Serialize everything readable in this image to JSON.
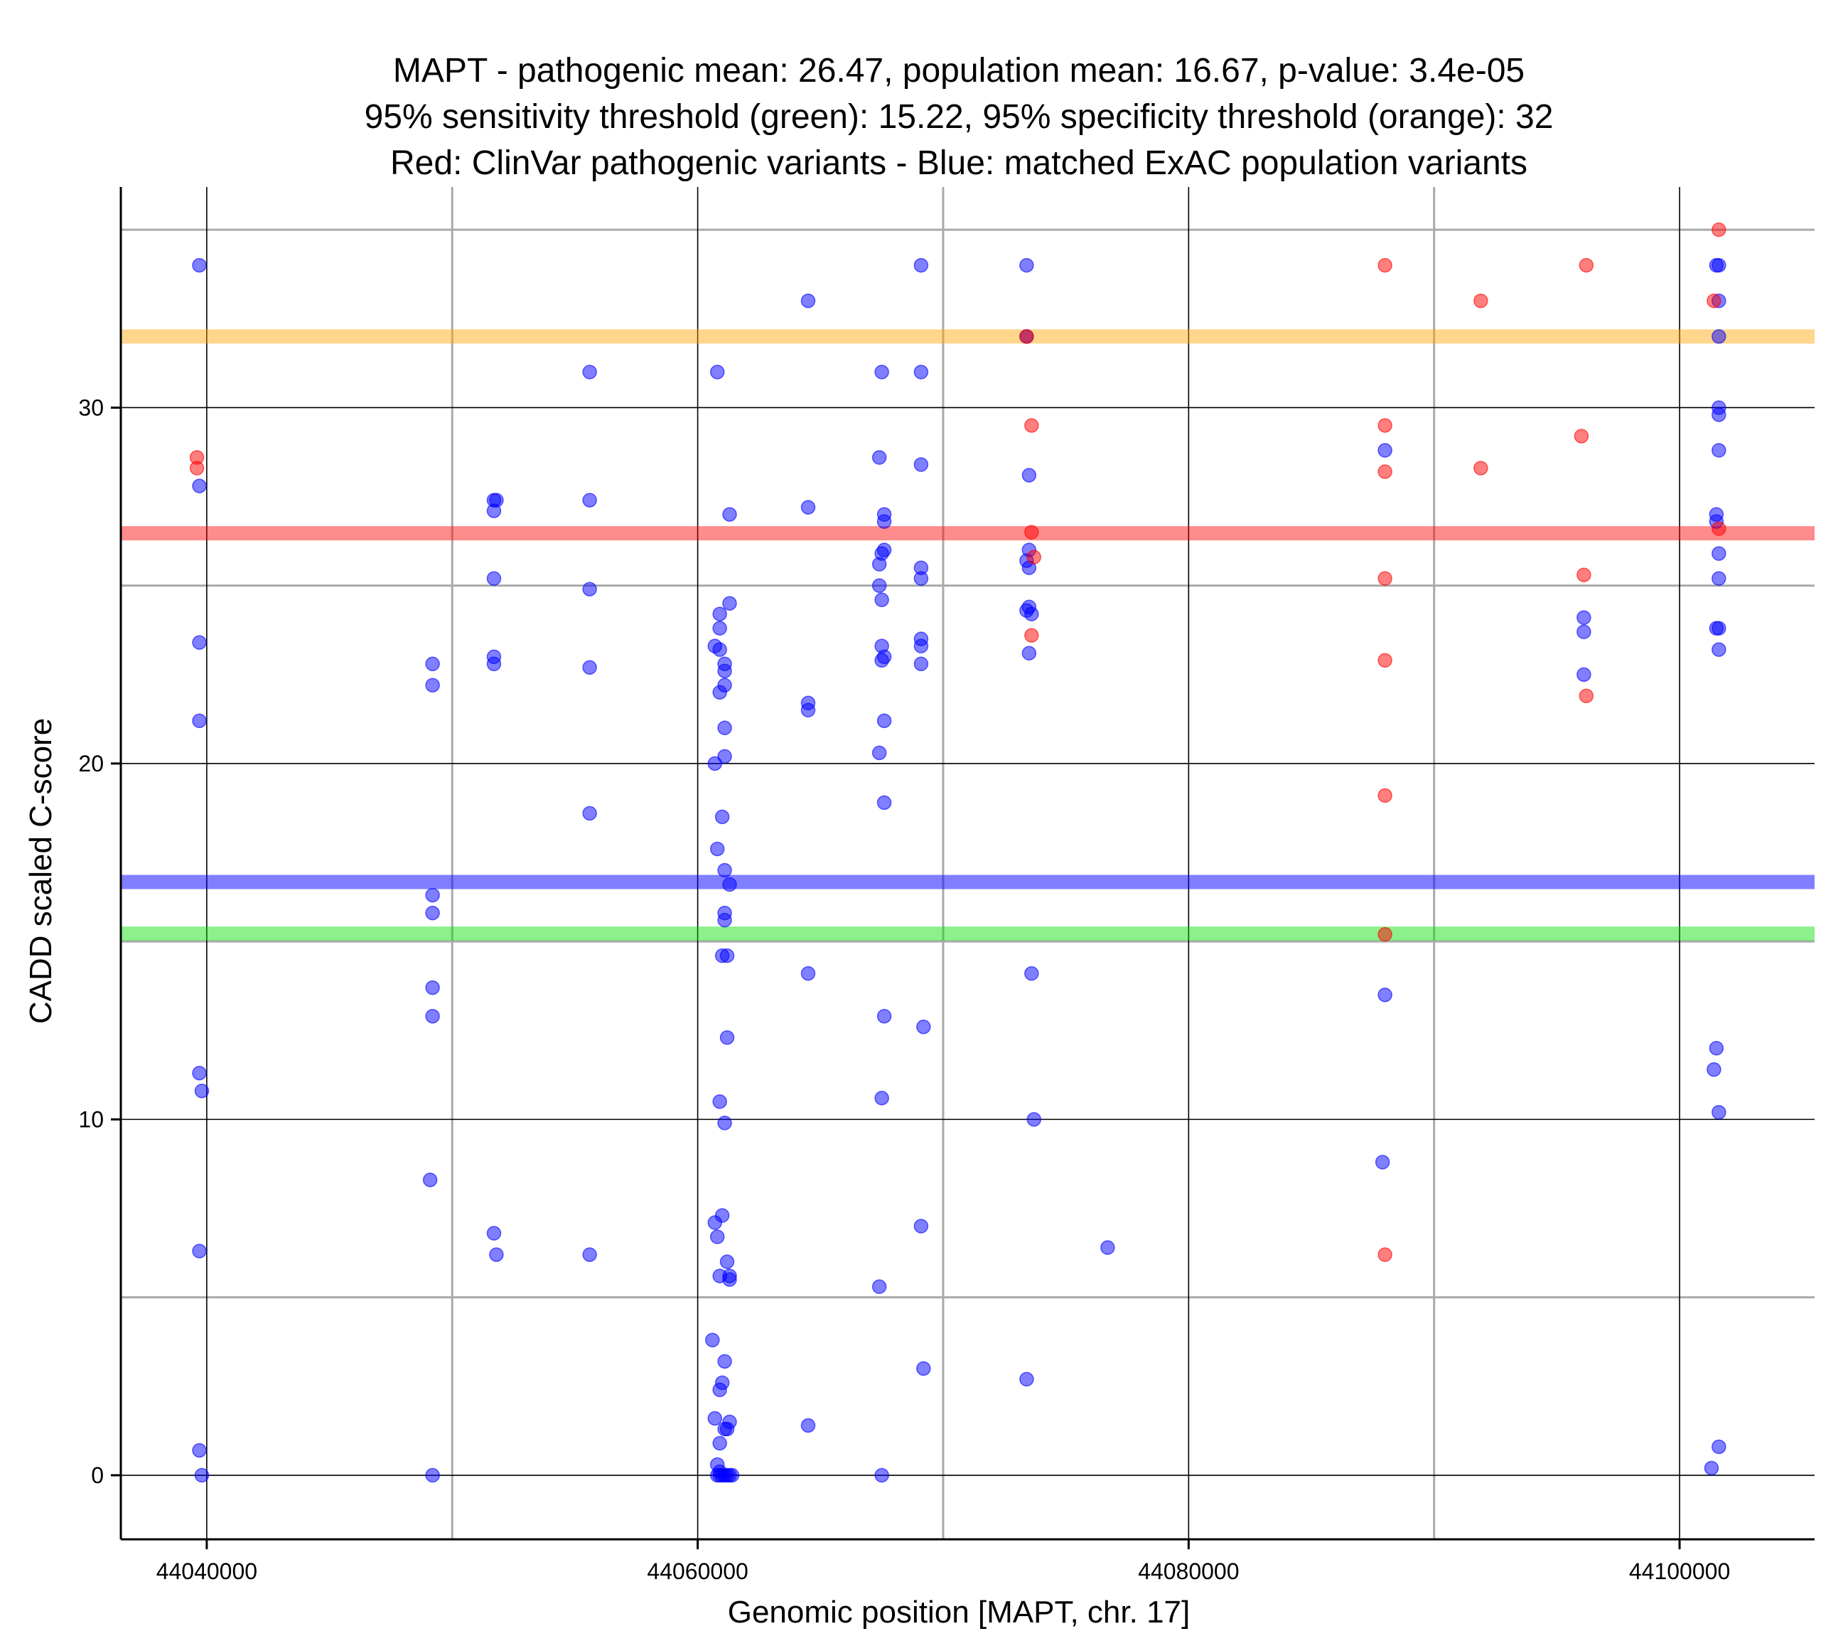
{
  "chart_data": {
    "type": "scatter",
    "title_lines": [
      "MAPT - pathogenic mean: 26.47, population mean: 16.67, p-value: 3.4e-05",
      "95% sensitivity threshold (green): 15.22, 95% specificity threshold (orange): 32",
      "Red: ClinVar pathogenic variants - Blue: matched ExAC population variants"
    ],
    "xlabel": "Genomic position [MAPT, chr. 17]",
    "ylabel": "CADD scaled C-score",
    "xlim": [
      44036500,
      44105500
    ],
    "ylim": [
      -1.8,
      36.2
    ],
    "x_major_ticks": [
      44040000,
      44060000,
      44080000,
      44100000
    ],
    "x_major_tick_labels": [
      "44040000",
      "44060000",
      "44080000",
      "44100000"
    ],
    "x_minor_gridlines": [
      44050000,
      44070000,
      44090000
    ],
    "y_major_ticks": [
      0,
      10,
      20,
      30
    ],
    "y_major_tick_labels": [
      "0",
      "10",
      "20",
      "30"
    ],
    "y_minor_gridlines": [
      5,
      15,
      25,
      35
    ],
    "reference_lines": [
      {
        "name": "specificity threshold",
        "value": 32,
        "color": "#FFA500",
        "opacity": 0.45
      },
      {
        "name": "pathogenic mean",
        "value": 26.47,
        "color": "#FF0000",
        "opacity": 0.45
      },
      {
        "name": "population mean",
        "value": 16.67,
        "color": "#0000FF",
        "opacity": 0.5
      },
      {
        "name": "sensitivity threshold",
        "value": 15.22,
        "color": "#00DD00",
        "opacity": 0.45
      }
    ],
    "series": [
      {
        "name": "ExAC population variants",
        "color": "#0000FF",
        "points": [
          [
            44039700,
            34
          ],
          [
            44039700,
            27.8
          ],
          [
            44039700,
            23.4
          ],
          [
            44039700,
            21.2
          ],
          [
            44039700,
            11.3
          ],
          [
            44039800,
            10.8
          ],
          [
            44039700,
            6.3
          ],
          [
            44039700,
            0.7
          ],
          [
            44039800,
            0
          ],
          [
            44049200,
            22.8
          ],
          [
            44049200,
            22.2
          ],
          [
            44049200,
            16.3
          ],
          [
            44049200,
            15.8
          ],
          [
            44049200,
            13.7
          ],
          [
            44049200,
            12.9
          ],
          [
            44049100,
            8.3
          ],
          [
            44049200,
            0
          ],
          [
            44051700,
            27.4
          ],
          [
            44051800,
            27.4
          ],
          [
            44051700,
            27.1
          ],
          [
            44051700,
            25.2
          ],
          [
            44051700,
            23
          ],
          [
            44051700,
            22.8
          ],
          [
            44051700,
            6.8
          ],
          [
            44051800,
            6.2
          ],
          [
            44055600,
            31
          ],
          [
            44055600,
            27.4
          ],
          [
            44055600,
            24.9
          ],
          [
            44055600,
            22.7
          ],
          [
            44055600,
            18.6
          ],
          [
            44055600,
            6.2
          ],
          [
            44060800,
            31
          ],
          [
            44061300,
            27
          ],
          [
            44060900,
            24.2
          ],
          [
            44061300,
            24.5
          ],
          [
            44060900,
            23.8
          ],
          [
            44060700,
            23.3
          ],
          [
            44060900,
            23.2
          ],
          [
            44061100,
            22.8
          ],
          [
            44061100,
            22.6
          ],
          [
            44061100,
            22.2
          ],
          [
            44060900,
            22
          ],
          [
            44061100,
            21
          ],
          [
            44061100,
            20.2
          ],
          [
            44060700,
            20
          ],
          [
            44061000,
            18.5
          ],
          [
            44060800,
            17.6
          ],
          [
            44061100,
            17
          ],
          [
            44061300,
            16.6
          ],
          [
            44061100,
            15.8
          ],
          [
            44061100,
            15.6
          ],
          [
            44061200,
            14.6
          ],
          [
            44061000,
            14.6
          ],
          [
            44061200,
            12.3
          ],
          [
            44060900,
            10.5
          ],
          [
            44061100,
            9.9
          ],
          [
            44061000,
            7.3
          ],
          [
            44060700,
            7.1
          ],
          [
            44060800,
            6.7
          ],
          [
            44061200,
            6
          ],
          [
            44061300,
            5.6
          ],
          [
            44060900,
            5.6
          ],
          [
            44061300,
            5.5
          ],
          [
            44060600,
            3.8
          ],
          [
            44061100,
            3.2
          ],
          [
            44061000,
            2.6
          ],
          [
            44060900,
            2.4
          ],
          [
            44060700,
            1.6
          ],
          [
            44061300,
            1.5
          ],
          [
            44061200,
            1.3
          ],
          [
            44061100,
            1.3
          ],
          [
            44060900,
            0.9
          ],
          [
            44060800,
            0.3
          ],
          [
            44060900,
            0.1
          ],
          [
            44060800,
            0
          ],
          [
            44060900,
            0
          ],
          [
            44061000,
            0
          ],
          [
            44061100,
            0
          ],
          [
            44061200,
            0
          ],
          [
            44061300,
            0
          ],
          [
            44061400,
            0
          ],
          [
            44064500,
            33
          ],
          [
            44064500,
            27.2
          ],
          [
            44064500,
            21.7
          ],
          [
            44064500,
            21.5
          ],
          [
            44064500,
            14.1
          ],
          [
            44064500,
            1.4
          ],
          [
            44067500,
            31
          ],
          [
            44067400,
            28.6
          ],
          [
            44067600,
            27
          ],
          [
            44067600,
            26.8
          ],
          [
            44067600,
            26
          ],
          [
            44067500,
            25.9
          ],
          [
            44067400,
            25.6
          ],
          [
            44067400,
            25
          ],
          [
            44067500,
            24.6
          ],
          [
            44067500,
            23.3
          ],
          [
            44067600,
            23
          ],
          [
            44067500,
            22.9
          ],
          [
            44067600,
            21.2
          ],
          [
            44067400,
            20.3
          ],
          [
            44067600,
            18.9
          ],
          [
            44067600,
            12.9
          ],
          [
            44067500,
            10.6
          ],
          [
            44067400,
            5.3
          ],
          [
            44067500,
            0
          ],
          [
            44069100,
            34
          ],
          [
            44069100,
            31
          ],
          [
            44069100,
            28.4
          ],
          [
            44069100,
            25.5
          ],
          [
            44069100,
            25.2
          ],
          [
            44069100,
            23.5
          ],
          [
            44069100,
            23.3
          ],
          [
            44069100,
            22.8
          ],
          [
            44069200,
            12.6
          ],
          [
            44069100,
            7
          ],
          [
            44069200,
            3
          ],
          [
            44073400,
            34
          ],
          [
            44073400,
            32
          ],
          [
            44073500,
            28.1
          ],
          [
            44073500,
            26
          ],
          [
            44073400,
            25.7
          ],
          [
            44073500,
            25.5
          ],
          [
            44073500,
            24.4
          ],
          [
            44073400,
            24.3
          ],
          [
            44073600,
            24.2
          ],
          [
            44073500,
            23.1
          ],
          [
            44073600,
            14.1
          ],
          [
            44073700,
            10
          ],
          [
            44073400,
            2.7
          ],
          [
            44076700,
            6.4
          ],
          [
            44088000,
            28.8
          ],
          [
            44088000,
            13.5
          ],
          [
            44087900,
            8.8
          ],
          [
            44096100,
            24.1
          ],
          [
            44096100,
            23.7
          ],
          [
            44096100,
            22.5
          ],
          [
            44101500,
            34
          ],
          [
            44101600,
            34
          ],
          [
            44101600,
            33
          ],
          [
            44101600,
            32
          ],
          [
            44101600,
            30
          ],
          [
            44101600,
            29.8
          ],
          [
            44101600,
            28.8
          ],
          [
            44101500,
            27
          ],
          [
            44101500,
            26.8
          ],
          [
            44101600,
            25.9
          ],
          [
            44101600,
            25.2
          ],
          [
            44101500,
            23.8
          ],
          [
            44101600,
            23.8
          ],
          [
            44101600,
            23.2
          ],
          [
            44101500,
            12
          ],
          [
            44101400,
            11.4
          ],
          [
            44101600,
            10.2
          ],
          [
            44101600,
            0.8
          ],
          [
            44101300,
            0.2
          ]
        ]
      },
      {
        "name": "ClinVar pathogenic variants",
        "color": "#FF0000",
        "points": [
          [
            44039600,
            28.6
          ],
          [
            44039600,
            28.3
          ],
          [
            44073400,
            32
          ],
          [
            44073600,
            29.5
          ],
          [
            44073600,
            26.5
          ],
          [
            44073700,
            25.8
          ],
          [
            44073600,
            23.6
          ],
          [
            44088000,
            34
          ],
          [
            44088000,
            29.5
          ],
          [
            44088000,
            28.2
          ],
          [
            44088000,
            25.2
          ],
          [
            44088000,
            22.9
          ],
          [
            44088000,
            19.1
          ],
          [
            44088000,
            15.2
          ],
          [
            44088000,
            6.2
          ],
          [
            44091900,
            33
          ],
          [
            44091900,
            28.3
          ],
          [
            44096200,
            34
          ],
          [
            44096000,
            29.2
          ],
          [
            44096100,
            25.3
          ],
          [
            44096200,
            21.9
          ],
          [
            44101600,
            35
          ],
          [
            44101400,
            33
          ],
          [
            44101600,
            26.6
          ]
        ]
      }
    ]
  }
}
